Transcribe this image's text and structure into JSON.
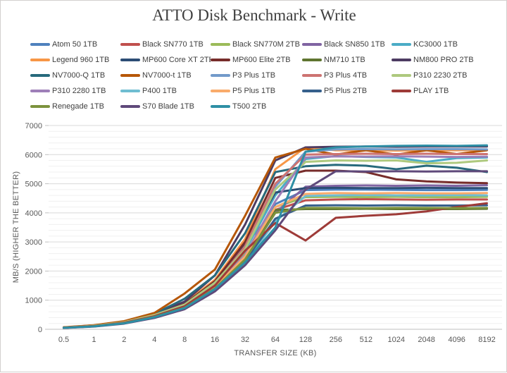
{
  "title": "ATTO Disk Benchmark - Write",
  "chart_data": {
    "type": "line",
    "title": "ATTO Disk Benchmark - Write",
    "xlabel": "TRANSFER SIZE (KB)",
    "ylabel": "MB/S (HIGHER THE BETTER)",
    "categories": [
      "0.5",
      "1",
      "2",
      "4",
      "8",
      "16",
      "32",
      "64",
      "128",
      "256",
      "512",
      "1024",
      "2048",
      "4096",
      "8192"
    ],
    "ylim": [
      0,
      7000
    ],
    "y_major_step": 1000,
    "y_minor_step": 200,
    "grid": true,
    "legend_position": "top",
    "colors": {
      "major_grid": "#d9d9d9",
      "minor_grid": "#f0f0f0",
      "axis_line": "#bfbfbf",
      "tick_text": "#595959",
      "legend_text": "#3f3f3f",
      "title_text": "#3f3f3f"
    },
    "series": [
      {
        "name": "Atom 50 1TB",
        "color": "#4F81BD",
        "values": [
          55,
          110,
          225,
          450,
          780,
          1450,
          2500,
          4300,
          4780,
          4800,
          4800,
          4790,
          4780,
          4780,
          4790
        ]
      },
      {
        "name": "Black SN770 1TB",
        "color": "#C0504D",
        "values": [
          60,
          120,
          240,
          480,
          820,
          1550,
          2900,
          4100,
          4430,
          4460,
          4470,
          4460,
          4450,
          4460,
          4460
        ]
      },
      {
        "name": "Black SN770M 2TB",
        "color": "#9BBB59",
        "values": [
          55,
          115,
          230,
          460,
          800,
          1500,
          2600,
          4200,
          4540,
          4550,
          4540,
          4550,
          4540,
          4540,
          4550
        ]
      },
      {
        "name": "Black SN850 1TB",
        "color": "#8064A2",
        "values": [
          50,
          100,
          210,
          420,
          740,
          1380,
          2400,
          4000,
          4900,
          4930,
          4940,
          4930,
          4940,
          4930,
          4950
        ]
      },
      {
        "name": "KC3000 1TB",
        "color": "#4BACC6",
        "values": [
          60,
          125,
          250,
          500,
          860,
          1600,
          2700,
          4600,
          5850,
          5950,
          5920,
          5900,
          5750,
          5880,
          5900
        ]
      },
      {
        "name": "Legend 960 1TB",
        "color": "#F79646",
        "values": [
          65,
          130,
          260,
          520,
          900,
          1700,
          3100,
          5500,
          6250,
          6150,
          6150,
          6140,
          6150,
          6150,
          6160
        ]
      },
      {
        "name": "MP600 Core XT 2TB",
        "color": "#2C4D75",
        "values": [
          60,
          120,
          245,
          490,
          850,
          1600,
          2900,
          4700,
          4850,
          4860,
          4850,
          4850,
          4860,
          4850,
          4850
        ]
      },
      {
        "name": "MP600 Elite 2TB",
        "color": "#772C2A",
        "values": [
          60,
          125,
          250,
          500,
          870,
          1650,
          3000,
          5200,
          5450,
          5450,
          5400,
          5150,
          5080,
          5040,
          5020
        ]
      },
      {
        "name": "NM710 1TB",
        "color": "#5F7530",
        "values": [
          50,
          105,
          215,
          430,
          750,
          1400,
          2450,
          4100,
          4130,
          4130,
          4140,
          4130,
          4130,
          4130,
          4140
        ]
      },
      {
        "name": "NM800 PRO 2TB",
        "color": "#4D3B62",
        "values": [
          65,
          135,
          270,
          540,
          950,
          1850,
          3600,
          5800,
          6250,
          6270,
          6280,
          6270,
          6280,
          6280,
          6280
        ]
      },
      {
        "name": "NV7000-Q 1TB",
        "color": "#276A7C",
        "values": [
          65,
          130,
          265,
          530,
          1050,
          1850,
          3300,
          5400,
          5600,
          5650,
          5620,
          5500,
          5620,
          5550,
          5400
        ]
      },
      {
        "name": "NV7000-t 1TB",
        "color": "#B65708",
        "values": [
          70,
          140,
          280,
          560,
          1230,
          2050,
          3900,
          5900,
          6200,
          6000,
          6150,
          6000,
          6150,
          6020,
          6150
        ]
      },
      {
        "name": "P3 Plus 1TB",
        "color": "#729ACA",
        "values": [
          55,
          115,
          235,
          470,
          820,
          1550,
          2800,
          4900,
          6100,
          6180,
          6190,
          6180,
          6190,
          6190,
          6180
        ]
      },
      {
        "name": "P3 Plus 4TB",
        "color": "#CD7371",
        "values": [
          55,
          115,
          235,
          470,
          820,
          1550,
          2850,
          5000,
          6000,
          6020,
          6030,
          6020,
          6030,
          6020,
          6020
        ]
      },
      {
        "name": "P310 2230 2TB",
        "color": "#AEC97E",
        "values": [
          60,
          120,
          245,
          490,
          850,
          1600,
          2750,
          4800,
          5750,
          5800,
          5790,
          5800,
          5700,
          5720,
          5800
        ]
      },
      {
        "name": "P310 2280 1TB",
        "color": "#9E7FB8",
        "values": [
          55,
          110,
          225,
          450,
          790,
          1480,
          2550,
          4400,
          5900,
          5940,
          5930,
          5940,
          5930,
          5920,
          5930
        ]
      },
      {
        "name": "P400 1TB",
        "color": "#6FBDD1",
        "values": [
          50,
          100,
          205,
          410,
          720,
          1350,
          2300,
          3700,
          4580,
          4600,
          4610,
          4600,
          4600,
          4610,
          4600
        ]
      },
      {
        "name": "P5 Plus 1TB",
        "color": "#F9AB6B",
        "values": [
          55,
          110,
          220,
          445,
          780,
          1450,
          2500,
          4200,
          4650,
          4680,
          4670,
          4680,
          4670,
          4670,
          4680
        ]
      },
      {
        "name": "P5 Plus 2TB",
        "color": "#36608C",
        "values": [
          50,
          100,
          205,
          410,
          720,
          1350,
          2350,
          3800,
          4250,
          4260,
          4250,
          4260,
          4250,
          4250,
          4260
        ]
      },
      {
        "name": "PLAY 1TB",
        "color": "#9E3B38",
        "values": [
          55,
          110,
          225,
          450,
          790,
          1500,
          2700,
          3650,
          3050,
          3830,
          3900,
          3950,
          4050,
          4200,
          4330
        ]
      },
      {
        "name": "Renegade 1TB",
        "color": "#7C923D",
        "values": [
          50,
          105,
          210,
          425,
          740,
          1400,
          2400,
          4000,
          4170,
          4170,
          4160,
          4170,
          4170,
          4160,
          4170
        ]
      },
      {
        "name": "S70 Blade 1TB",
        "color": "#5F497A",
        "values": [
          45,
          95,
          195,
          390,
          690,
          1300,
          2200,
          3400,
          4800,
          5430,
          5420,
          5430,
          5420,
          5430,
          5430
        ]
      },
      {
        "name": "T500 2TB",
        "color": "#2E8FA5",
        "values": [
          50,
          100,
          205,
          415,
          730,
          1380,
          2300,
          3500,
          6100,
          6250,
          6280,
          6300,
          6310,
          6300,
          6320
        ]
      }
    ]
  }
}
